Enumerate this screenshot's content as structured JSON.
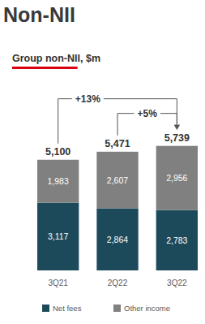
{
  "chart_data": {
    "type": "bar",
    "title": "Non-NII",
    "subtitle": "Group non-NII, $m",
    "categories": [
      "3Q21",
      "2Q22",
      "3Q22"
    ],
    "series": [
      {
        "name": "Net fees",
        "color": "#1d4a5b",
        "values": [
          3117,
          2864,
          2783
        ],
        "value_labels": [
          "3,117",
          "2,864",
          "2,783"
        ]
      },
      {
        "name": "Other income",
        "color": "#808080",
        "values": [
          1983,
          2607,
          2956
        ],
        "value_labels": [
          "1,983",
          "2,607",
          "2,956"
        ]
      }
    ],
    "totals": [
      5100,
      5471,
      5739
    ],
    "total_labels": [
      "5,100",
      "5,471",
      "5,739"
    ],
    "annotations": [
      {
        "text": "+13%",
        "from": "3Q21",
        "to": "3Q22"
      },
      {
        "text": "+5%",
        "from": "2Q22",
        "to": "3Q22"
      }
    ],
    "stacked": true,
    "data_labels": true,
    "tick_labels": "x",
    "legend": "bottom",
    "grid": false
  }
}
